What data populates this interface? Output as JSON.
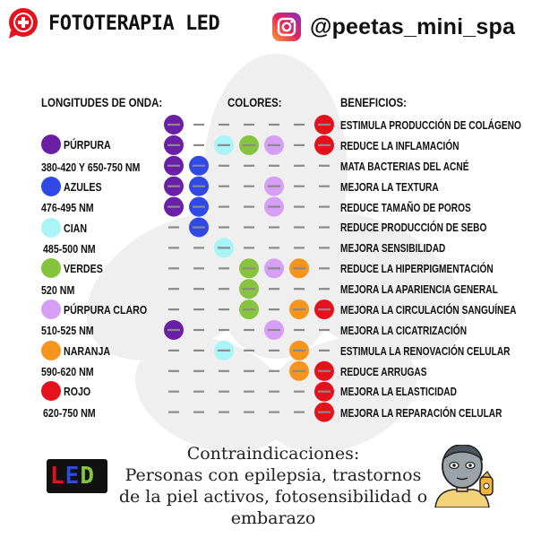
{
  "header": {
    "title": "FOTOTERAPIA LED",
    "handle": "@peetas_mini_spa"
  },
  "columns": {
    "wavelengths": "LONGITUDES DE ONDA:",
    "colors": "COLORES:",
    "benefits": "BENEFICIOS:"
  },
  "legend": [
    {
      "label": "PÚRPURA",
      "range": "380-420 Y 650-750 NM",
      "color": "#6b1fa6"
    },
    {
      "label": "AZULES",
      "range": "476-495 NM",
      "color": "#2f48e6"
    },
    {
      "label": "CIAN",
      "range": "485-500 NM",
      "color": "#a9f4f7"
    },
    {
      "label": "VERDES",
      "range": "520 NM",
      "color": "#86c43e"
    },
    {
      "label": "PÚRPURA CLARO",
      "range": "510-525 NM",
      "color": "#d79ef5"
    },
    {
      "label": "NARANJA",
      "range": "590-620 NM",
      "color": "#f5951e"
    },
    {
      "label": "ROJO",
      "range": "620-750 NM",
      "color": "#e5121e"
    }
  ],
  "benefits": [
    {
      "text": "ESTIMULA PRODUCCIÓN DE COLÁGENO",
      "colors": [
        1,
        0,
        0,
        0,
        0,
        0,
        1
      ]
    },
    {
      "text": "REDUCE LA INFLAMACIÓN",
      "colors": [
        1,
        0,
        1,
        1,
        1,
        0,
        1
      ]
    },
    {
      "text": "MATA BACTERIAS DEL ACNÉ",
      "colors": [
        1,
        1,
        0,
        0,
        0,
        0,
        0
      ]
    },
    {
      "text": "MEJORA LA TEXTURA",
      "colors": [
        1,
        1,
        0,
        0,
        1,
        0,
        0
      ]
    },
    {
      "text": "REDUCE TAMAÑO DE POROS",
      "colors": [
        1,
        1,
        0,
        0,
        1,
        0,
        0
      ]
    },
    {
      "text": "REDUCE PRODUCCIÓN DE SEBO",
      "colors": [
        0,
        1,
        0,
        0,
        0,
        0,
        0
      ]
    },
    {
      "text": "MEJORA SENSIBILIDAD",
      "colors": [
        0,
        0,
        1,
        0,
        0,
        0,
        0
      ]
    },
    {
      "text": "REDUCE LA HIPERPIGMENTACIÓN",
      "colors": [
        0,
        0,
        0,
        1,
        1,
        1,
        0
      ]
    },
    {
      "text": "MEJORA LA APARIENCIA GENERAL",
      "colors": [
        0,
        0,
        0,
        1,
        0,
        0,
        0
      ]
    },
    {
      "text": "MEJORA LA CIRCULACIÓN SANGUÍNEA",
      "colors": [
        0,
        0,
        0,
        1,
        0,
        1,
        1
      ]
    },
    {
      "text": "MEJORA LA CICATRIZACIÓN",
      "colors": [
        1,
        0,
        0,
        0,
        1,
        0,
        0
      ]
    },
    {
      "text": "ESTIMULA LA RENOVACIÓN CELULAR",
      "colors": [
        0,
        0,
        1,
        0,
        0,
        1,
        0
      ]
    },
    {
      "text": "REDUCE ARRUGAS",
      "colors": [
        0,
        0,
        0,
        0,
        0,
        1,
        1
      ]
    },
    {
      "text": "MEJORA LA ELASTICIDAD",
      "colors": [
        0,
        0,
        0,
        0,
        0,
        0,
        1
      ]
    },
    {
      "text": "MEJORA LA REPARACIÓN CELULAR",
      "colors": [
        0,
        0,
        0,
        0,
        0,
        0,
        1
      ]
    }
  ],
  "contraindications": {
    "title": "Contraindicaciones:",
    "line1": "Personas con epilepsia, trastornos",
    "line2": "de la piel activos, fotosensibilidad o",
    "line3": "embarazo"
  },
  "led_sign": {
    "letters": [
      "L",
      "E",
      "D"
    ],
    "colors": [
      "#e5121e",
      "#2f48e6",
      "#86c43e"
    ]
  },
  "icons": {
    "header_left": "plus-bubble-icon",
    "header_right": "instagram-icon",
    "bottom_right": "face-mask-icon"
  }
}
